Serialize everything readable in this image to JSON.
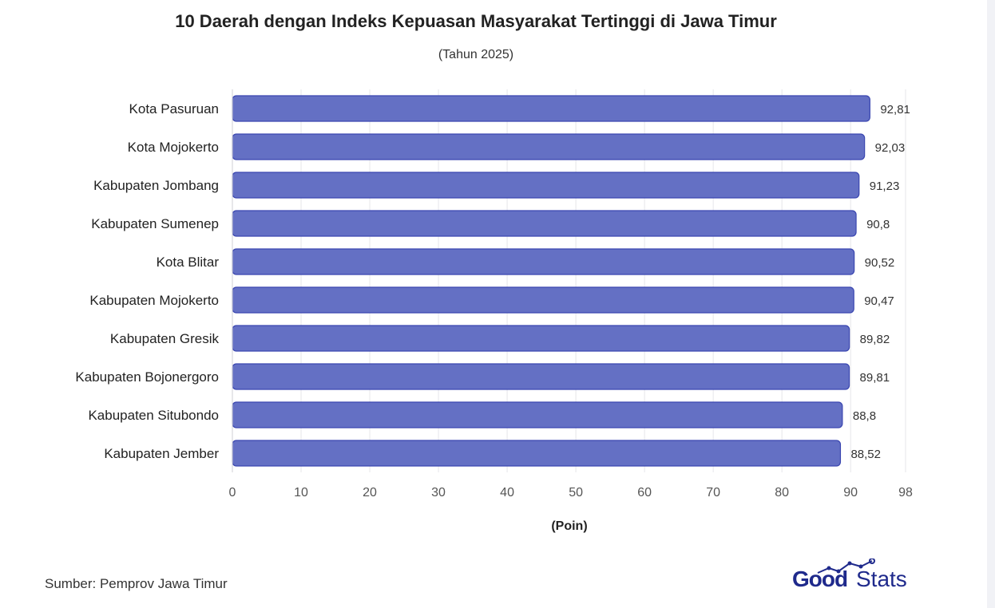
{
  "title": "10 Daerah dengan Indeks Kepuasan Masyarakat Tertinggi di Jawa Timur",
  "subtitle": "(Tahun 2025)",
  "source": "Sumber: Pemprov Jawa Timur",
  "logo": {
    "part1": "Good",
    "part2": "Stats"
  },
  "colors": {
    "bar_fill": "#6470c4",
    "bar_stroke": "#3a46b0",
    "grid": "#e6e6ea"
  },
  "chart_data": {
    "type": "bar",
    "orientation": "horizontal",
    "xlabel": "(Poin)",
    "xlim": [
      0,
      98
    ],
    "xticks": [
      "0",
      "10",
      "20",
      "30",
      "40",
      "50",
      "60",
      "70",
      "80",
      "90",
      "98"
    ],
    "categories": [
      "Kota Pasuruan",
      "Kota Mojokerto",
      "Kabupaten Jombang",
      "Kabupaten Sumenep",
      "Kota Blitar",
      "Kabupaten Mojokerto",
      "Kabupaten Gresik",
      "Kabupaten Bojonergoro",
      "Kabupaten Situbondo",
      "Kabupaten Jember"
    ],
    "values": [
      92.81,
      92.03,
      91.23,
      90.8,
      90.52,
      90.47,
      89.82,
      89.81,
      88.8,
      88.52
    ],
    "value_labels": [
      "92,81",
      "92,03",
      "91,23",
      "90,8",
      "90,52",
      "90,47",
      "89,82",
      "89,81",
      "88,8",
      "88,52"
    ],
    "grid": true
  }
}
